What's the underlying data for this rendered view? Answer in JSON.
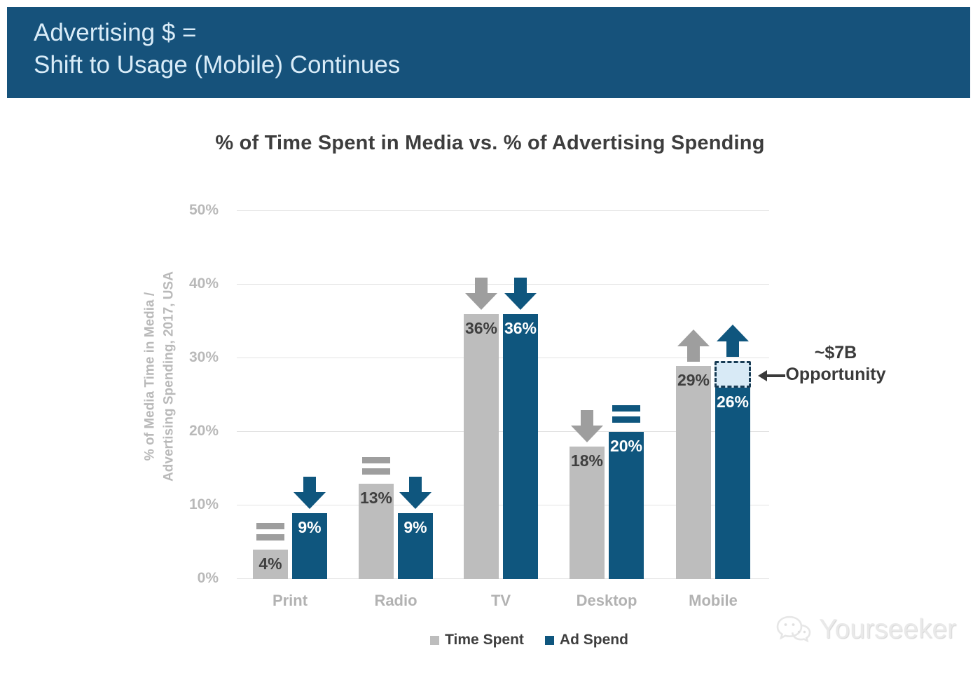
{
  "header": {
    "line1": "Advertising $ =",
    "line2": "Shift to Usage (Mobile) Continues"
  },
  "chart_data": {
    "type": "bar",
    "title": "% of Time Spent in Media vs. % of Advertising Spending",
    "ylabel": "% of Media Time in Media / Advertising Spending, 2017, USA",
    "ylabel_line1": "% of Media Time in Media /",
    "ylabel_line2": "Advertising Spending, 2017, USA",
    "categories": [
      "Print",
      "Radio",
      "TV",
      "Desktop",
      "Mobile"
    ],
    "series": [
      {
        "name": "Time Spent",
        "color": "#bdbdbd",
        "values": [
          4,
          13,
          36,
          18,
          29
        ],
        "trends": [
          "flat",
          "flat",
          "down",
          "down",
          "up"
        ]
      },
      {
        "name": "Ad Spend",
        "color": "#0f567e",
        "values": [
          9,
          9,
          36,
          20,
          26
        ],
        "trends": [
          "down",
          "down",
          "down",
          "flat",
          "up"
        ]
      }
    ],
    "ylim": [
      0,
      50
    ],
    "yticks": [
      "0%",
      "10%",
      "20%",
      "30%",
      "40%",
      "50%"
    ],
    "grid": true,
    "legend_position": "bottom-center",
    "opportunity": {
      "category": "Mobile",
      "series": "Ad Spend",
      "from_value": 26,
      "to_value": 29.6,
      "label_line1": "~$7B",
      "label_line2": "Opportunity"
    }
  },
  "watermark": {
    "text": "Yourseeker"
  }
}
